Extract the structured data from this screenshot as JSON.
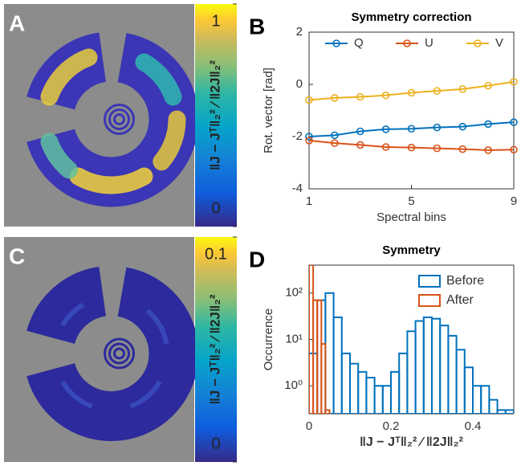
{
  "chart_data": [
    {
      "type": "heatmap",
      "panel": "A",
      "colorbar_label": "‖J − Jᵀ‖₂² ⁄ ‖2J‖₂²",
      "clim": [
        0,
        1
      ],
      "cticks": [
        0,
        1
      ]
    },
    {
      "type": "line",
      "panel": "B",
      "title": "Symmetry correction",
      "xlabel": "Spectral bins",
      "ylabel": "Rot. vector [rad]",
      "x": [
        1,
        2,
        3,
        4,
        5,
        6,
        7,
        8,
        9
      ],
      "xlim": [
        1,
        9
      ],
      "xticks": [
        1,
        5,
        9
      ],
      "ylim": [
        -4,
        2
      ],
      "yticks": [
        -4,
        -2,
        0,
        2
      ],
      "legend": "top",
      "series": [
        {
          "name": "Q",
          "color": "#0072bd",
          "values": [
            -2.0,
            -1.95,
            -1.8,
            -1.72,
            -1.7,
            -1.65,
            -1.62,
            -1.52,
            -1.45
          ]
        },
        {
          "name": "U",
          "color": "#d95319",
          "values": [
            -2.15,
            -2.25,
            -2.32,
            -2.4,
            -2.42,
            -2.45,
            -2.48,
            -2.52,
            -2.5
          ]
        },
        {
          "name": "V",
          "color": "#edb120",
          "values": [
            -0.6,
            -0.52,
            -0.48,
            -0.42,
            -0.32,
            -0.25,
            -0.18,
            -0.05,
            0.1
          ]
        }
      ]
    },
    {
      "type": "heatmap",
      "panel": "C",
      "colorbar_label": "‖J − Jᵀ‖₂² ⁄ ‖2J‖₂²",
      "clim": [
        0,
        0.1
      ],
      "cticks": [
        0,
        0.1
      ]
    },
    {
      "type": "histogram",
      "panel": "D",
      "title": "Symmetry",
      "xlabel": "‖J − Jᵀ‖₂² ⁄ ‖2J‖₂²",
      "ylabel": "Occurrence",
      "xlim": [
        0,
        0.5
      ],
      "xticks": [
        0,
        0.2,
        0.4
      ],
      "ylim": [
        0.25,
        400
      ],
      "log_y": true,
      "legend": "top-right",
      "yticks": [
        {
          "value": 1,
          "label": "10⁰"
        },
        {
          "value": 10,
          "label": "10¹"
        },
        {
          "value": 100,
          "label": "10²"
        }
      ],
      "series": [
        {
          "name": "Before",
          "color": "#0072bd",
          "bins": [
            0,
            0.02,
            0.04,
            0.06,
            0.08,
            0.1,
            0.12,
            0.14,
            0.16,
            0.18,
            0.2,
            0.22,
            0.24,
            0.26,
            0.28,
            0.3,
            0.32,
            0.34,
            0.36,
            0.38,
            0.4,
            0.42,
            0.44,
            0.46,
            0.48,
            0.5
          ],
          "values": [
            5,
            70,
            100,
            30,
            5,
            3,
            2,
            1.5,
            1,
            1,
            2,
            5,
            15,
            25,
            30,
            28,
            20,
            12,
            6,
            2.5,
            1,
            1,
            0.5,
            0.3,
            0.3
          ]
        },
        {
          "name": "After",
          "color": "#d95319",
          "bins": [
            0,
            0.01,
            0.02,
            0.03,
            0.04,
            0.05
          ],
          "values": [
            400,
            70,
            70,
            8,
            0.3
          ]
        }
      ]
    }
  ]
}
